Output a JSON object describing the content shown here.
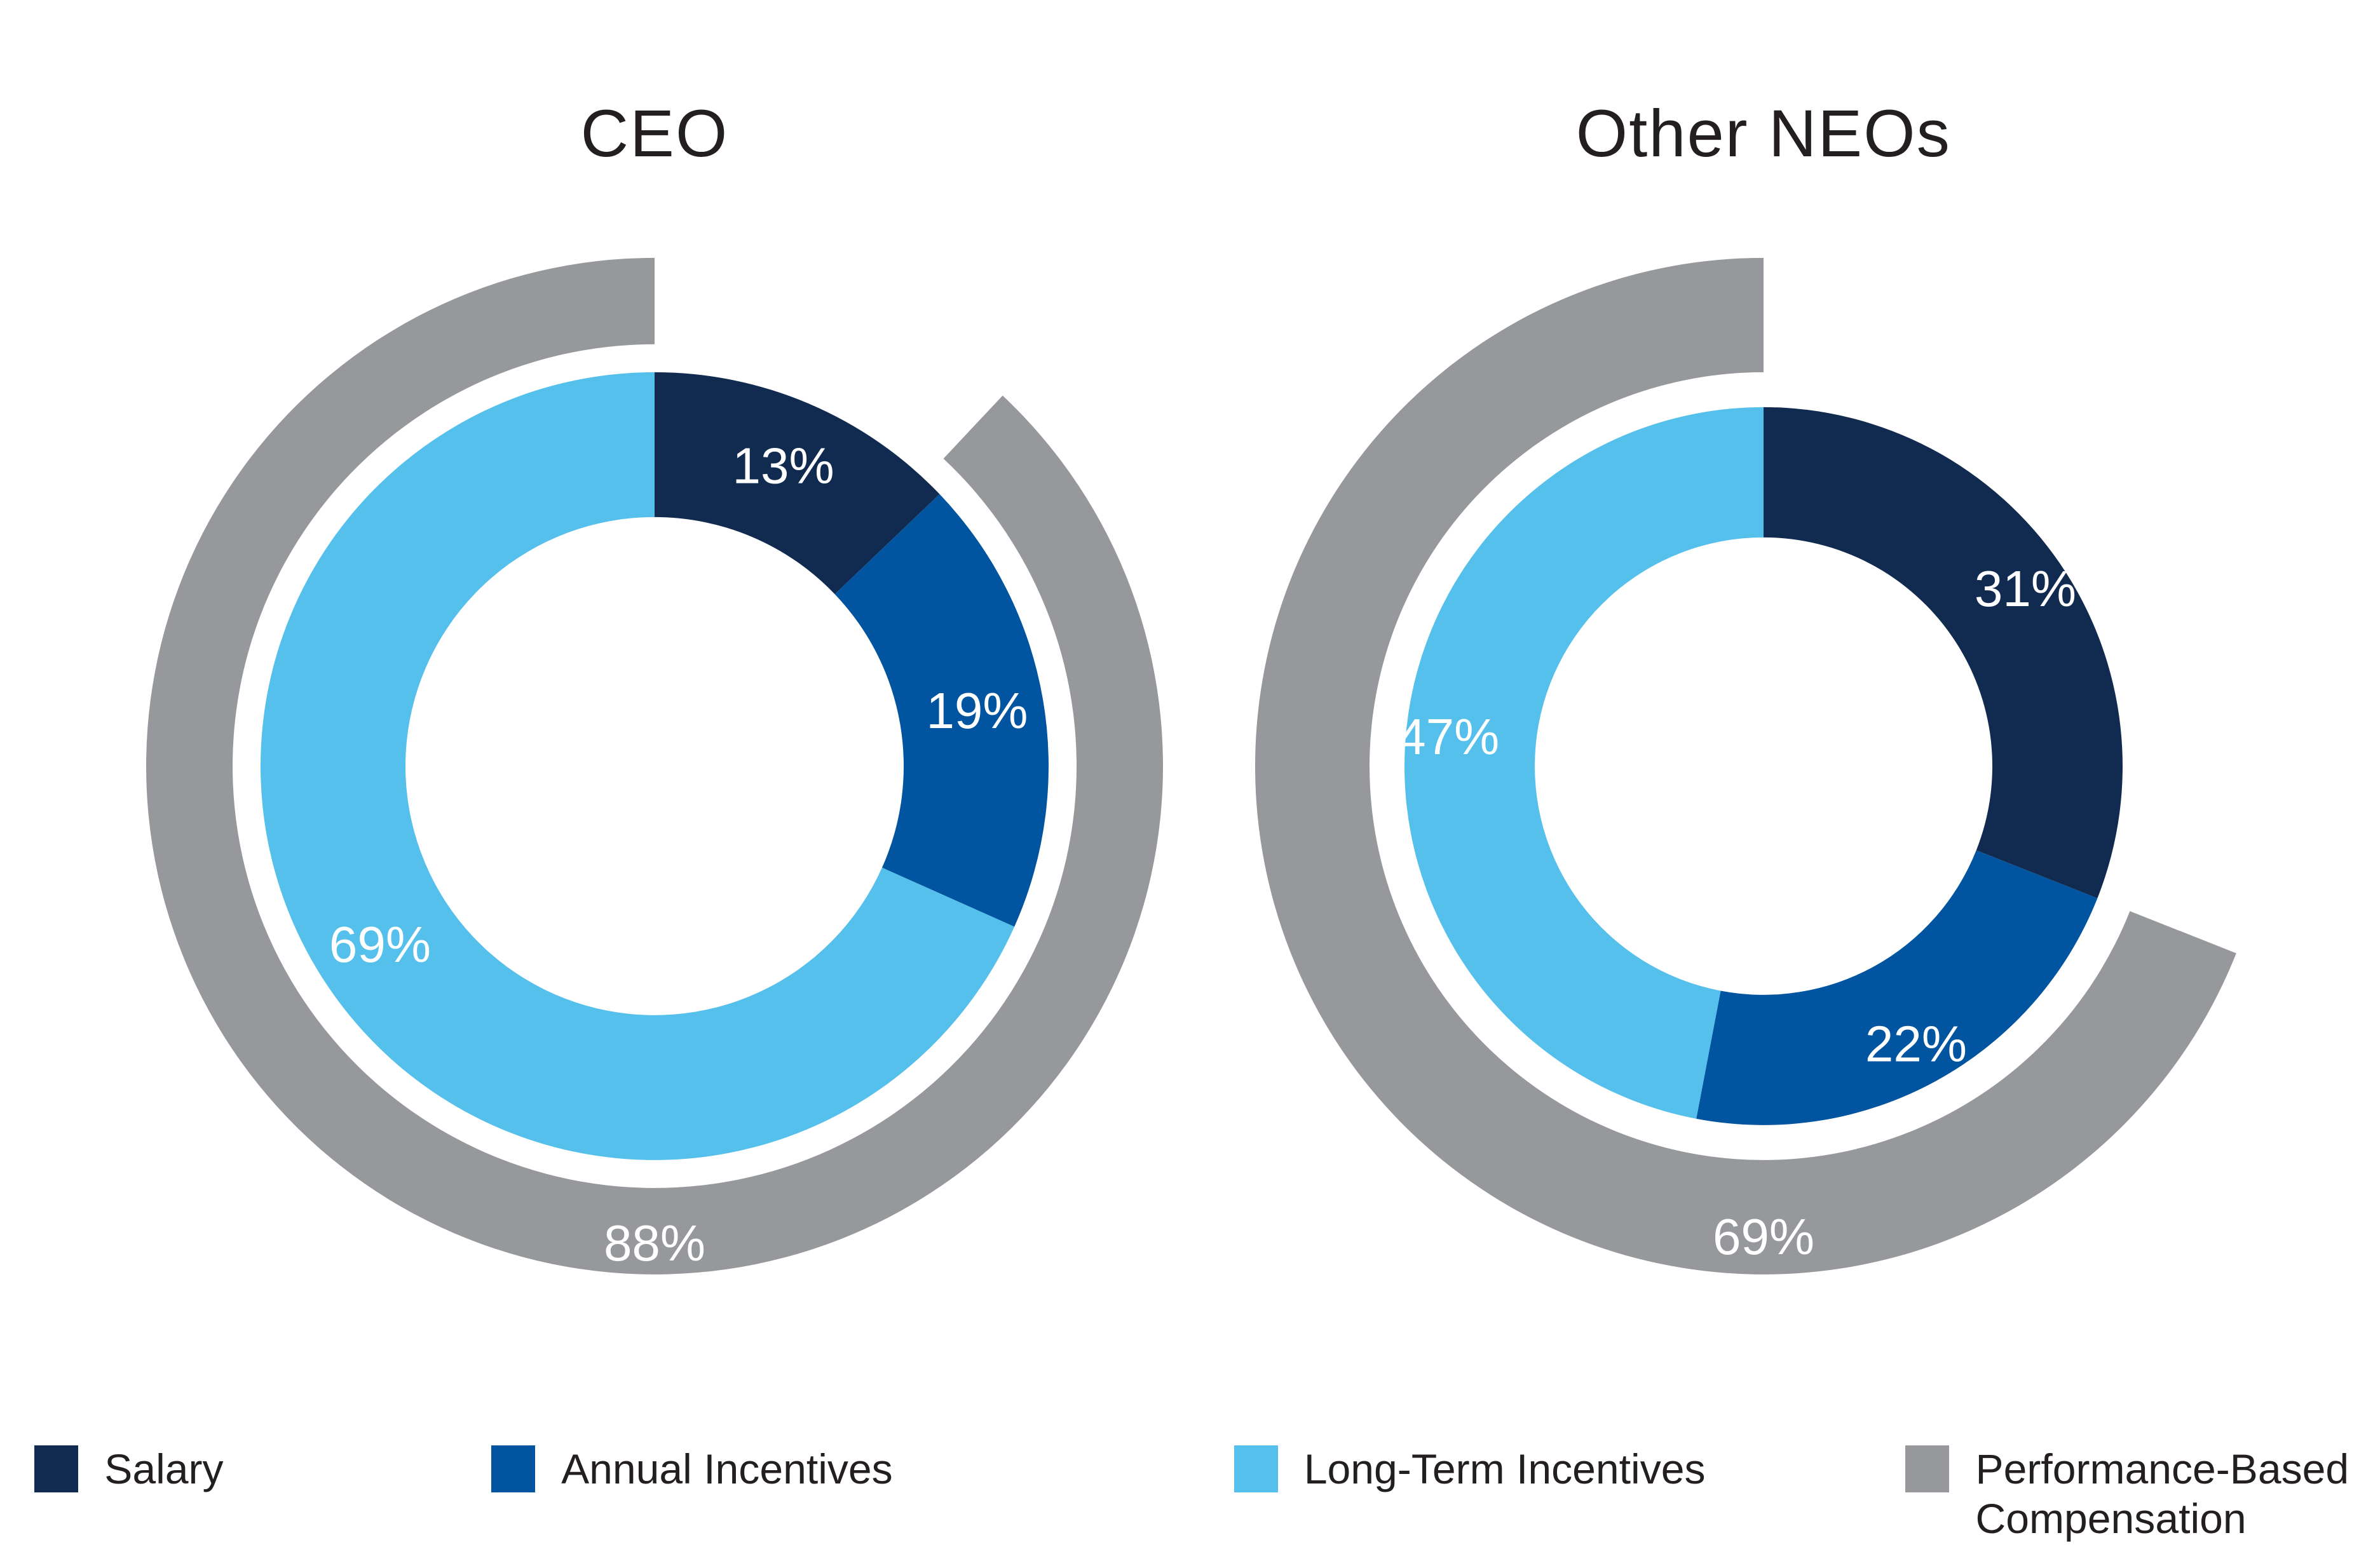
{
  "colors": {
    "salary": "#112B50",
    "annual_incentives": "#0054A0",
    "long_term_incentives": "#54C0EB",
    "performance_based": "#96989B",
    "segment_label_text": "#FFFFFF",
    "title_text": "#231F20",
    "background": "#FFFFFF"
  },
  "legend": [
    {
      "label": "Salary",
      "color_key": "salary"
    },
    {
      "label": "Annual Incentives",
      "color_key": "annual_incentives"
    },
    {
      "label": "Long-Term Incentives",
      "color_key": "long_term_incentives"
    },
    {
      "label": "Performance-Based Compensation",
      "color_key": "performance_based"
    }
  ],
  "chart_data": [
    {
      "type": "pie",
      "subtype": "donut-with-outer-arc",
      "title": "CEO",
      "start_angle_deg": 0,
      "direction": "clockwise",
      "segments": [
        {
          "label": "Salary",
          "value": 13,
          "display": "13%",
          "color_key": "salary"
        },
        {
          "label": "Annual Incentives",
          "value": 19,
          "display": "19%",
          "color_key": "annual_incentives"
        },
        {
          "label": "Long-Term Incentives",
          "value": 69,
          "display": "69%",
          "color_key": "long_term_incentives"
        }
      ],
      "outer_arc": {
        "label": "Performance-Based Compensation",
        "value": 88,
        "display": "88%",
        "color_key": "performance_based",
        "gap_position": "top-right"
      }
    },
    {
      "type": "pie",
      "subtype": "donut-with-outer-arc",
      "title": "Other NEOs",
      "start_angle_deg": 0,
      "direction": "clockwise",
      "segments": [
        {
          "label": "Salary",
          "value": 31,
          "display": "31%",
          "color_key": "salary"
        },
        {
          "label": "Annual Incentives",
          "value": 22,
          "display": "22%",
          "color_key": "annual_incentives"
        },
        {
          "label": "Long-Term Incentives",
          "value": 47,
          "display": "47%",
          "color_key": "long_term_incentives"
        }
      ],
      "outer_arc": {
        "label": "Performance-Based Compensation",
        "value": 69,
        "display": "69%",
        "color_key": "performance_based",
        "gap_position": "top-right"
      }
    }
  ]
}
